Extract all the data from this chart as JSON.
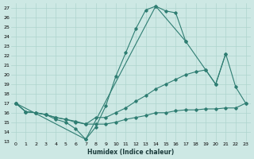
{
  "title": "",
  "xlabel": "Humidex (Indice chaleur)",
  "bg_color": "#cde8e4",
  "line_color": "#2e7d72",
  "grid_color": "#aed4ce",
  "xlim": [
    -0.5,
    23.5
  ],
  "ylim": [
    13.0,
    27.5
  ],
  "yticks": [
    13,
    14,
    15,
    16,
    17,
    18,
    19,
    20,
    21,
    22,
    23,
    24,
    25,
    26,
    27
  ],
  "xticks": [
    0,
    1,
    2,
    3,
    4,
    5,
    6,
    7,
    8,
    9,
    10,
    11,
    12,
    13,
    14,
    15,
    16,
    17,
    18,
    19,
    20,
    21,
    22,
    23
  ],
  "lines": [
    {
      "x": [
        0,
        1,
        2,
        3,
        4,
        5,
        6,
        7,
        8,
        9,
        10,
        11,
        12,
        13,
        14,
        15,
        16,
        17
      ],
      "y": [
        17.0,
        16.1,
        16.0,
        15.8,
        15.3,
        15.0,
        14.3,
        13.2,
        14.5,
        16.7,
        19.8,
        22.3,
        24.8,
        26.8,
        27.2,
        26.7,
        26.5,
        23.5
      ]
    },
    {
      "x": [
        0,
        1,
        2,
        3,
        4,
        5,
        6,
        7,
        8,
        9,
        10,
        11,
        12,
        13,
        14,
        15,
        16,
        17,
        18,
        19,
        20,
        21
      ],
      "y": [
        17.0,
        16.1,
        16.0,
        15.8,
        15.5,
        15.3,
        15.0,
        14.8,
        15.5,
        15.5,
        16.0,
        16.5,
        17.2,
        17.8,
        18.5,
        19.0,
        19.5,
        20.0,
        20.3,
        20.5,
        19.0,
        22.2
      ]
    },
    {
      "x": [
        0,
        1,
        2,
        3,
        4,
        5,
        6,
        7,
        8,
        9,
        10,
        11,
        12,
        13,
        14,
        15,
        16,
        17,
        18,
        19,
        20,
        21,
        22,
        23
      ],
      "y": [
        17.0,
        16.1,
        16.0,
        15.8,
        15.5,
        15.3,
        15.1,
        14.8,
        14.8,
        14.8,
        15.0,
        15.3,
        15.5,
        15.7,
        16.0,
        16.0,
        16.2,
        16.3,
        16.3,
        16.4,
        16.4,
        16.5,
        16.5,
        17.0
      ]
    },
    {
      "x": [
        0,
        7,
        14,
        17,
        19,
        20,
        21,
        22,
        23
      ],
      "y": [
        17.0,
        13.2,
        27.2,
        23.5,
        20.5,
        19.0,
        22.2,
        18.7,
        17.0
      ]
    }
  ],
  "figsize": [
    3.2,
    2.0
  ],
  "dpi": 100
}
